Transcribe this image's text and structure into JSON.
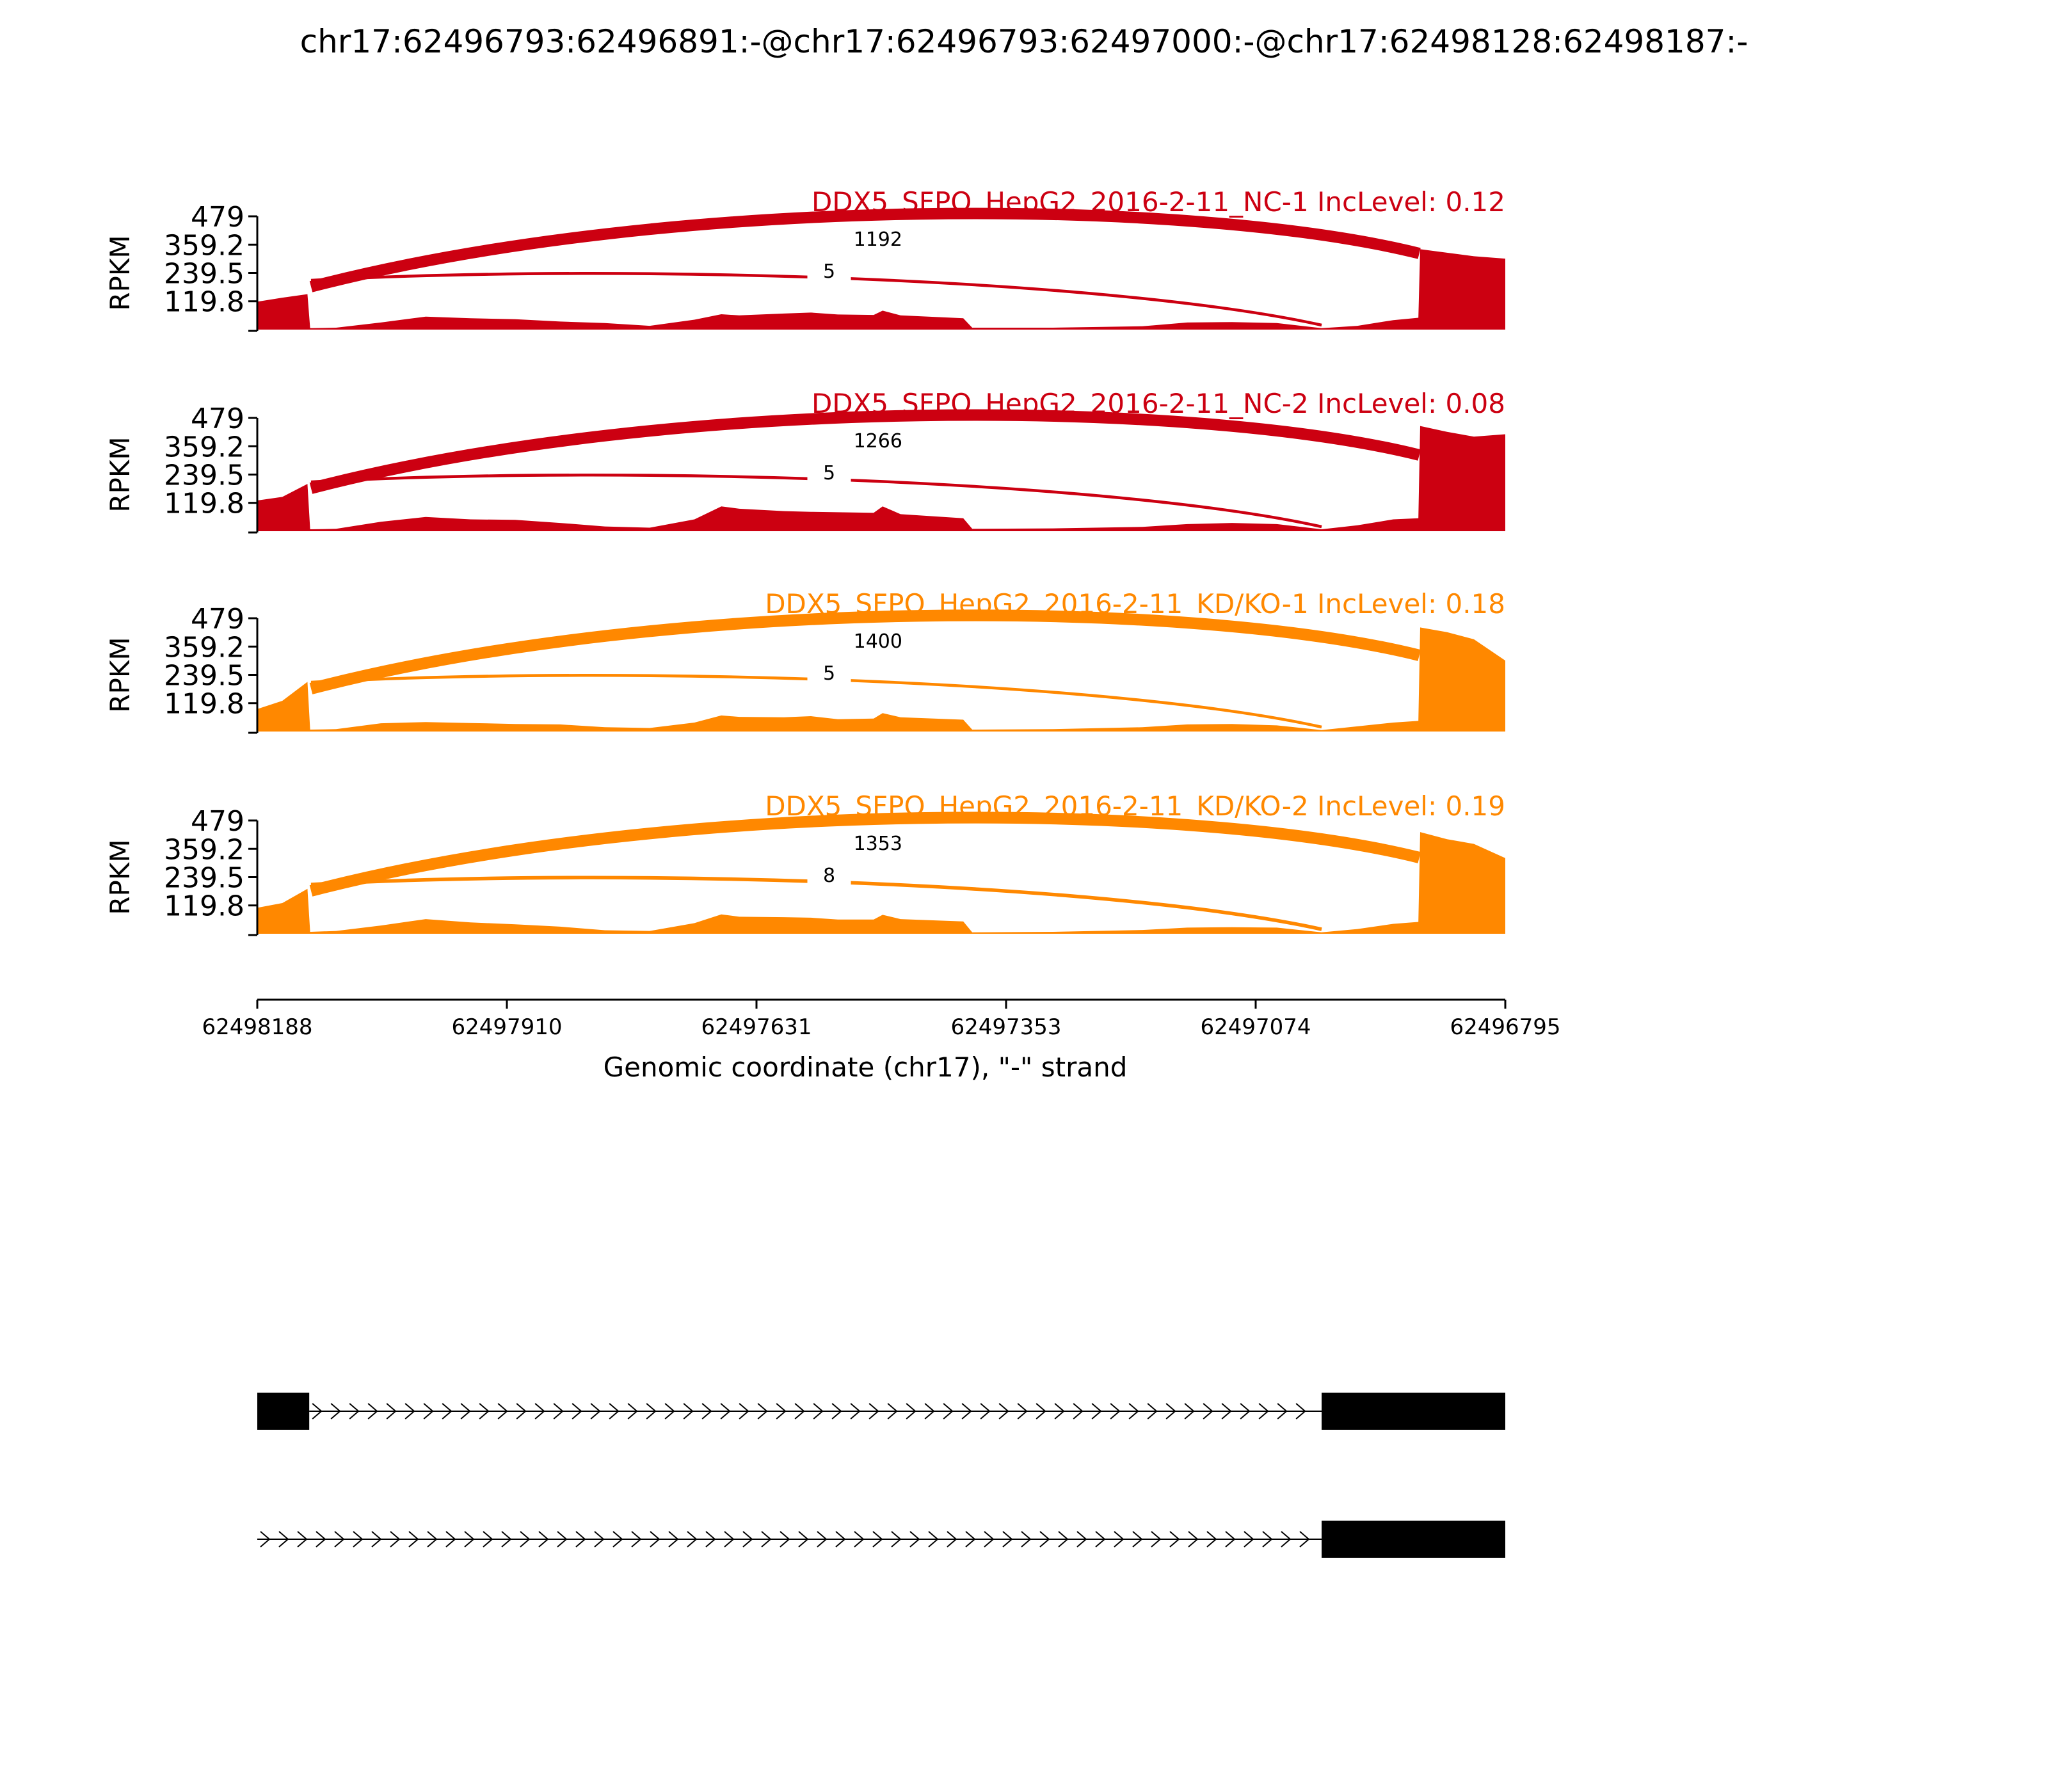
{
  "title": "chr17:62496793:62496891:-@chr17:62496793:62497000:-@chr17:62498128:62498187:-",
  "colors": {
    "nc": "#cc0011",
    "kd": "#ff8800",
    "axis": "#000000",
    "gene": "#000000"
  },
  "chart_data": {
    "type": "area",
    "title": "chr17:62496793:62496891:-@chr17:62496793:62497000:-@chr17:62498128:62498187:-",
    "xlabel": "Genomic coordinate (chr17), \"-\" strand",
    "ylabel": "RPKM",
    "x_ticks": [
      "62498188",
      "62497910",
      "62497631",
      "62497353",
      "62497074",
      "62496795"
    ],
    "xlim": [
      62498188,
      62496795
    ],
    "ylim": [
      0,
      479
    ],
    "y_ticks": [
      "479",
      "359.2",
      "239.5",
      "119.8"
    ],
    "y_tick_values": [
      479,
      359.2,
      239.5,
      119.8
    ],
    "panels": [
      {
        "label": "DDX5_SFPQ_HepG2_2016-2-11_NC-1 IncLevel: 0.12",
        "color": "#cc0011",
        "junctions": [
          {
            "from": 62498128,
            "to": 62496891,
            "count": "1192",
            "weight": 1192
          },
          {
            "from": 62498128,
            "to": 62497000,
            "count": "5",
            "weight": 5
          }
        ],
        "coverage": [
          [
            62498188,
            118
          ],
          [
            62498160,
            135
          ],
          [
            62498132,
            150
          ],
          [
            62498129,
            6
          ],
          [
            62498100,
            8
          ],
          [
            62498050,
            30
          ],
          [
            62498000,
            55
          ],
          [
            62497950,
            48
          ],
          [
            62497900,
            44
          ],
          [
            62497850,
            34
          ],
          [
            62497800,
            28
          ],
          [
            62497750,
            16
          ],
          [
            62497700,
            42
          ],
          [
            62497670,
            65
          ],
          [
            62497650,
            60
          ],
          [
            62497600,
            68
          ],
          [
            62497570,
            72
          ],
          [
            62497540,
            64
          ],
          [
            62497500,
            62
          ],
          [
            62497490,
            80
          ],
          [
            62497470,
            60
          ],
          [
            62497400,
            48
          ],
          [
            62497390,
            8
          ],
          [
            62497300,
            8
          ],
          [
            62497200,
            14
          ],
          [
            62497150,
            30
          ],
          [
            62497100,
            32
          ],
          [
            62497050,
            28
          ],
          [
            62497000,
            6
          ],
          [
            62496960,
            16
          ],
          [
            62496920,
            40
          ],
          [
            62496892,
            50
          ],
          [
            62496890,
            340
          ],
          [
            62496860,
            325
          ],
          [
            62496830,
            310
          ],
          [
            62496795,
            300
          ]
        ]
      },
      {
        "label": "DDX5_SFPQ_HepG2_2016-2-11_NC-2 IncLevel: 0.08",
        "color": "#cc0011",
        "junctions": [
          {
            "from": 62498128,
            "to": 62496891,
            "count": "1266",
            "weight": 1266
          },
          {
            "from": 62498128,
            "to": 62497000,
            "count": "5",
            "weight": 5
          }
        ],
        "coverage": [
          [
            62498188,
            130
          ],
          [
            62498160,
            145
          ],
          [
            62498132,
            200
          ],
          [
            62498129,
            8
          ],
          [
            62498100,
            10
          ],
          [
            62498050,
            40
          ],
          [
            62498000,
            60
          ],
          [
            62497950,
            50
          ],
          [
            62497900,
            48
          ],
          [
            62497850,
            35
          ],
          [
            62497800,
            20
          ],
          [
            62497750,
            15
          ],
          [
            62497700,
            50
          ],
          [
            62497670,
            105
          ],
          [
            62497650,
            95
          ],
          [
            62497600,
            85
          ],
          [
            62497570,
            82
          ],
          [
            62497540,
            80
          ],
          [
            62497500,
            78
          ],
          [
            62497490,
            105
          ],
          [
            62497470,
            72
          ],
          [
            62497400,
            55
          ],
          [
            62497390,
            10
          ],
          [
            62497300,
            12
          ],
          [
            62497200,
            18
          ],
          [
            62497150,
            30
          ],
          [
            62497100,
            35
          ],
          [
            62497050,
            30
          ],
          [
            62497000,
            8
          ],
          [
            62496960,
            25
          ],
          [
            62496920,
            50
          ],
          [
            62496892,
            55
          ],
          [
            62496890,
            445
          ],
          [
            62496860,
            420
          ],
          [
            62496830,
            400
          ],
          [
            62496795,
            410
          ]
        ]
      },
      {
        "label": "DDX5_SFPQ_HepG2_2016-2-11_KD/KO-1 IncLevel: 0.18",
        "color": "#ff8800",
        "junctions": [
          {
            "from": 62498128,
            "to": 62496891,
            "count": "1400",
            "weight": 1400
          },
          {
            "from": 62498128,
            "to": 62497000,
            "count": "5",
            "weight": 5
          }
        ],
        "coverage": [
          [
            62498188,
            95
          ],
          [
            62498160,
            130
          ],
          [
            62498132,
            210
          ],
          [
            62498129,
            8
          ],
          [
            62498100,
            10
          ],
          [
            62498050,
            35
          ],
          [
            62498000,
            40
          ],
          [
            62497950,
            36
          ],
          [
            62497900,
            32
          ],
          [
            62497850,
            30
          ],
          [
            62497800,
            18
          ],
          [
            62497750,
            15
          ],
          [
            62497700,
            38
          ],
          [
            62497670,
            68
          ],
          [
            62497650,
            62
          ],
          [
            62497600,
            60
          ],
          [
            62497570,
            65
          ],
          [
            62497540,
            52
          ],
          [
            62497500,
            55
          ],
          [
            62497490,
            78
          ],
          [
            62497470,
            60
          ],
          [
            62497400,
            50
          ],
          [
            62497390,
            8
          ],
          [
            62497300,
            10
          ],
          [
            62497200,
            18
          ],
          [
            62497150,
            30
          ],
          [
            62497100,
            32
          ],
          [
            62497050,
            26
          ],
          [
            62497000,
            6
          ],
          [
            62496960,
            22
          ],
          [
            62496920,
            38
          ],
          [
            62496892,
            45
          ],
          [
            62496890,
            440
          ],
          [
            62496860,
            420
          ],
          [
            62496830,
            390
          ],
          [
            62496795,
            300
          ]
        ]
      },
      {
        "label": "DDX5_SFPQ_HepG2_2016-2-11_KD/KO-2 IncLevel: 0.19",
        "color": "#ff8800",
        "junctions": [
          {
            "from": 62498128,
            "to": 62496891,
            "count": "1353",
            "weight": 1353
          },
          {
            "from": 62498128,
            "to": 62497000,
            "count": "8",
            "weight": 8
          }
        ],
        "coverage": [
          [
            62498188,
            110
          ],
          [
            62498160,
            130
          ],
          [
            62498132,
            190
          ],
          [
            62498129,
            8
          ],
          [
            62498100,
            12
          ],
          [
            62498050,
            35
          ],
          [
            62498000,
            62
          ],
          [
            62497950,
            48
          ],
          [
            62497900,
            40
          ],
          [
            62497850,
            30
          ],
          [
            62497800,
            15
          ],
          [
            62497750,
            12
          ],
          [
            62497700,
            45
          ],
          [
            62497670,
            82
          ],
          [
            62497650,
            72
          ],
          [
            62497600,
            70
          ],
          [
            62497570,
            68
          ],
          [
            62497540,
            60
          ],
          [
            62497500,
            60
          ],
          [
            62497490,
            80
          ],
          [
            62497470,
            62
          ],
          [
            62497400,
            52
          ],
          [
            62497390,
            6
          ],
          [
            62497300,
            8
          ],
          [
            62497200,
            16
          ],
          [
            62497150,
            26
          ],
          [
            62497100,
            28
          ],
          [
            62497050,
            26
          ],
          [
            62497000,
            6
          ],
          [
            62496960,
            20
          ],
          [
            62496920,
            42
          ],
          [
            62496892,
            50
          ],
          [
            62496890,
            430
          ],
          [
            62496860,
            400
          ],
          [
            62496830,
            380
          ],
          [
            62496795,
            320
          ]
        ]
      }
    ]
  },
  "gene_models": [
    {
      "exons": [
        [
          62498188,
          62498130
        ],
        [
          62497000,
          62496795
        ]
      ],
      "intron": [
        62498130,
        62497000
      ]
    },
    {
      "exons": [
        [
          62497000,
          62496795
        ]
      ],
      "intron": [
        62498188,
        62497000
      ]
    }
  ]
}
